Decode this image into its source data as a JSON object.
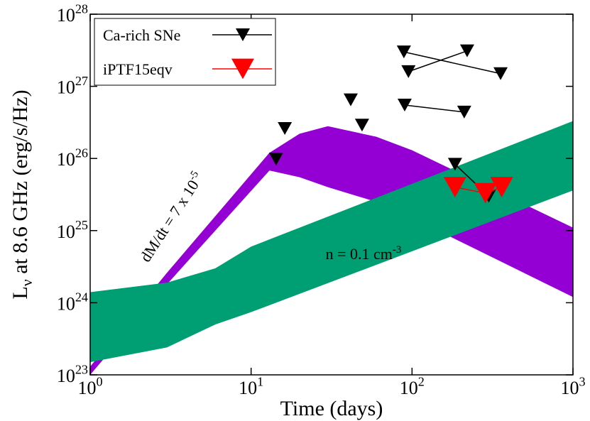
{
  "chart_data": {
    "type": "scatter",
    "xlabel": "Time (days)",
    "ylabel": {
      "main": "L",
      "sub": "ν",
      "rest": " at 8.6 GHz (erg/s/Hz)"
    },
    "log_x": true,
    "log_y": true,
    "xlim": [
      1,
      1000
    ],
    "xticks": [
      {
        "value": 1,
        "label": "10",
        "sup": "0"
      },
      {
        "value": 10,
        "label": "10",
        "sup": "1"
      },
      {
        "value": 100,
        "label": "10",
        "sup": "2"
      },
      {
        "value": 1000,
        "label": "10",
        "sup": "3"
      }
    ],
    "ylim": [
      1e+23,
      1e+28
    ],
    "yticks": [
      {
        "value": 1e+23,
        "label": "10",
        "sup": "23"
      },
      {
        "value": 1e+24,
        "label": "10",
        "sup": "24"
      },
      {
        "value": 1e+25,
        "label": "10",
        "sup": "25"
      },
      {
        "value": 1e+26,
        "label": "10",
        "sup": "26"
      },
      {
        "value": 1e+27,
        "label": "10",
        "sup": "27"
      },
      {
        "value": 1e+28,
        "label": "10",
        "sup": "28"
      }
    ],
    "legend": "upper-left",
    "bands": [
      {
        "color": "#9400d3",
        "x": [
          1,
          3,
          13,
          20,
          30,
          60,
          100,
          300,
          1000
        ],
        "upper": [
          1.3e+23,
          2.6e+24,
          1.2e+26,
          2.2e+26,
          2.8e+26,
          2e+26,
          1.3e+26,
          4e+25,
          1.1e+25
        ],
        "lower": [
          1e+23,
          1.8e+24,
          6.8e+25,
          5.5e+25,
          4e+25,
          2.5e+25,
          1.5e+25,
          4.5e+24,
          1.2e+24
        ]
      },
      {
        "color": "#009e73",
        "x": [
          1,
          3,
          6,
          10,
          1000
        ],
        "upper": [
          1.4e+24,
          1.9e+24,
          3e+24,
          6e+24,
          3.3e+26
        ],
        "lower": [
          1.5e+23,
          2.4e+23,
          5e+23,
          7.4e+23,
          3.6e+25
        ]
      }
    ],
    "annotations": [
      {
        "text": "dM/dt = 7 x 10",
        "sup": "-5"
      },
      {
        "text": "n = 0.1 cm",
        "sup": "-3"
      }
    ],
    "series": [
      {
        "name": "Ca-rich SNe",
        "color": "#000000",
        "x": [
          14.3,
          16.2,
          41.6,
          48.9
        ],
        "values": [
          9.8e+25,
          2.6e+26,
          6.5e+26,
          2.9e+26
        ]
      },
      {
        "name": "iPTF15eqv",
        "color": "#ff0000",
        "x": [
          185,
          286,
          361
        ],
        "values": [
          4e+25,
          3.3e+25,
          4e+25
        ]
      }
    ],
    "tracks": [
      {
        "color": "#000000",
        "x": [
          90,
          211
        ],
        "values": [
          5.5e+26,
          4.4e+26
        ]
      },
      {
        "color": "#000000",
        "x": [
          89,
          355
        ],
        "values": [
          3e+27,
          1.5e+27
        ]
      },
      {
        "color": "#000000",
        "x": [
          95,
          220
        ],
        "values": [
          1.6e+27,
          3.1e+27
        ]
      },
      {
        "color": "#000000",
        "x": [
          185,
          300
        ],
        "values": [
          8.3e+25,
          3e+25
        ]
      }
    ]
  }
}
